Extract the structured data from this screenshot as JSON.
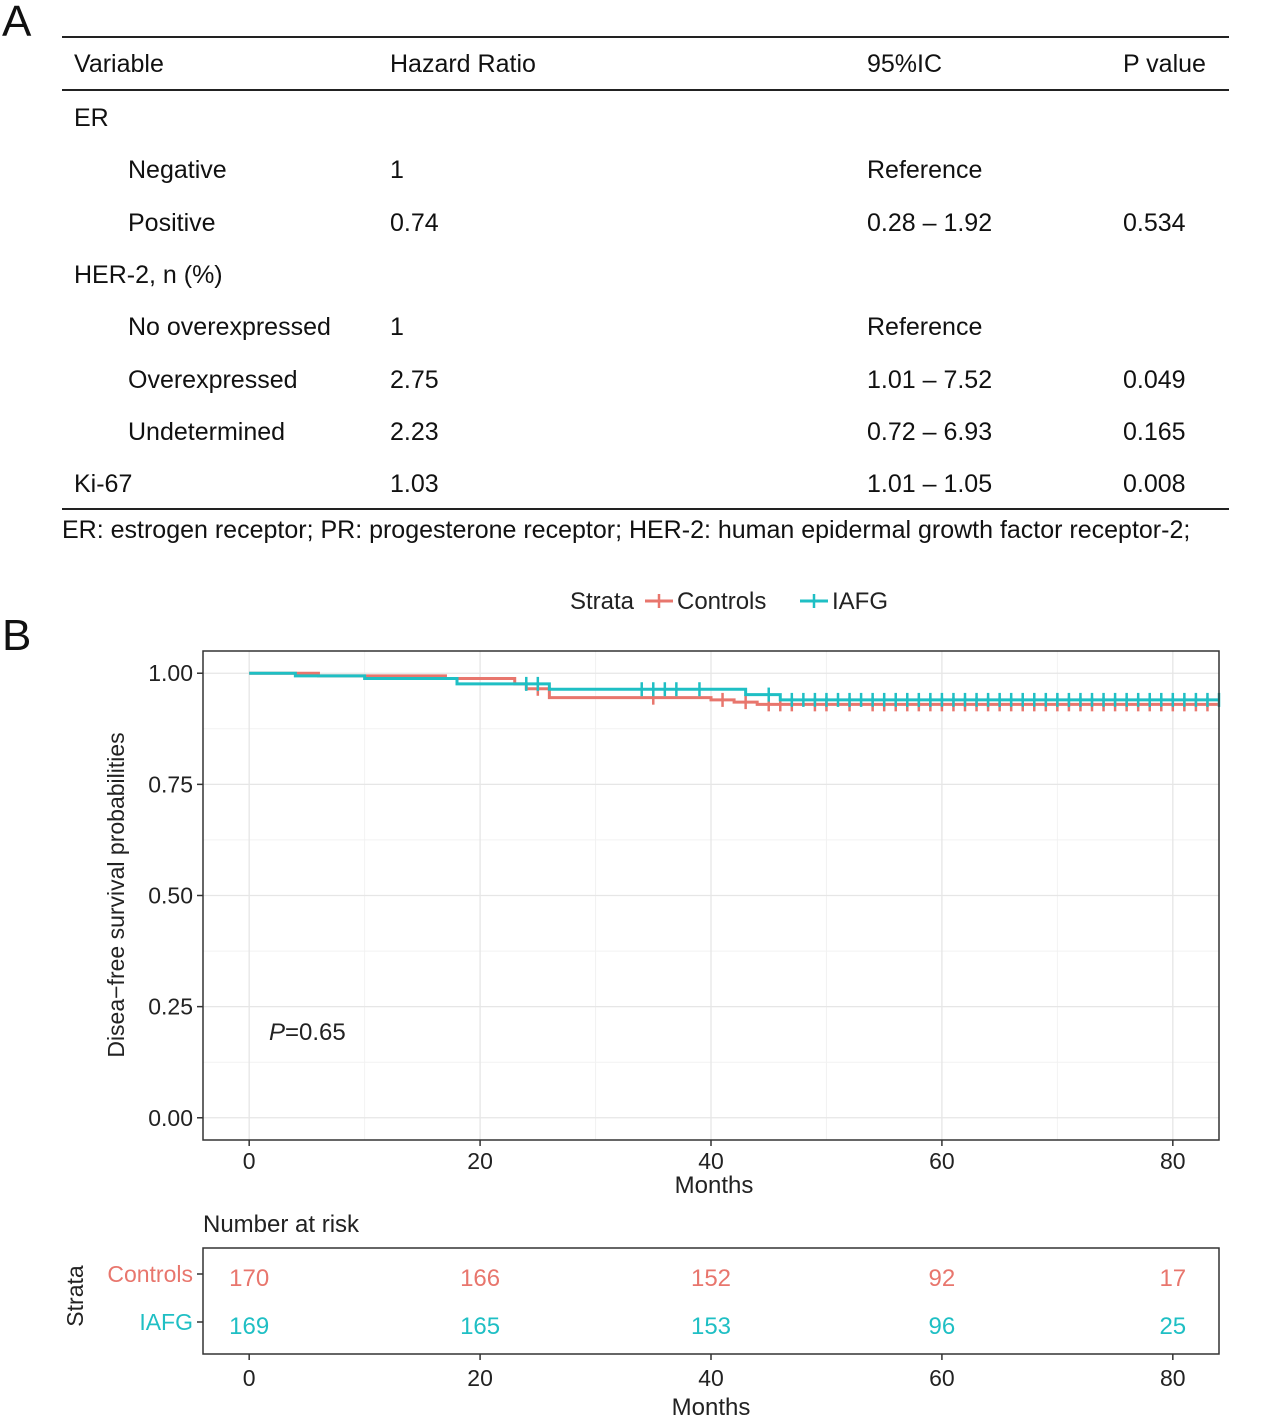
{
  "panels": {
    "a": "A",
    "b": "B"
  },
  "table": {
    "headers": [
      "Variable",
      "Hazard Ratio",
      "95%IC",
      "P value"
    ],
    "rows": [
      {
        "variable": "ER",
        "indent": false,
        "hr": "",
        "ci": "",
        "p": ""
      },
      {
        "variable": "Negative",
        "indent": true,
        "hr": "1",
        "ci": "Reference",
        "p": ""
      },
      {
        "variable": "Positive",
        "indent": true,
        "hr": "0.74",
        "ci": "0.28 – 1.92",
        "p": "0.534"
      },
      {
        "variable": "HER-2, n (%)",
        "indent": false,
        "hr": "",
        "ci": "",
        "p": ""
      },
      {
        "variable": "No overexpressed",
        "indent": true,
        "hr": "1",
        "ci": "Reference",
        "p": ""
      },
      {
        "variable": "Overexpressed",
        "indent": true,
        "hr": "2.75",
        "ci": "1.01 – 7.52",
        "p": "0.049"
      },
      {
        "variable": "Undetermined",
        "indent": true,
        "hr": "2.23",
        "ci": "0.72 – 6.93",
        "p": "0.165"
      },
      {
        "variable": "Ki-67",
        "indent": false,
        "hr": "1.03",
        "ci": "1.01 – 1.05",
        "p": "0.008"
      }
    ],
    "footnote": "ER: estrogen receptor; PR: progesterone receptor; HER-2: human epidermal growth factor receptor-2;"
  },
  "chart_data": {
    "type": "line",
    "legend": {
      "title": "Strata",
      "position": "top"
    },
    "xlabel": "Months",
    "ylabel": "Disea−free survival probabilities",
    "xlim": [
      -4,
      84
    ],
    "ylim": [
      -0.05,
      1.05
    ],
    "xticks": [
      0,
      20,
      40,
      60,
      80
    ],
    "yticks": [
      0.0,
      0.25,
      0.5,
      0.75,
      1.0
    ],
    "ytick_labels": [
      "0.00",
      "0.25",
      "0.50",
      "0.75",
      "1.00"
    ],
    "grid": true,
    "annotation": {
      "italic": "P",
      "text": "=0.65"
    },
    "series": [
      {
        "name": "Controls",
        "color": "#E8766D",
        "steps": [
          [
            0,
            1.0
          ],
          [
            6,
            0.994
          ],
          [
            17,
            0.988
          ],
          [
            23,
            0.976
          ],
          [
            24,
            0.965
          ],
          [
            26,
            0.945
          ],
          [
            40,
            0.94
          ],
          [
            42,
            0.935
          ],
          [
            44,
            0.93
          ],
          [
            84,
            0.93
          ]
        ],
        "censor_x": [
          25,
          35,
          41,
          43,
          45,
          46,
          47,
          49,
          50,
          52,
          54,
          55,
          56,
          57,
          58,
          59,
          60,
          61,
          62,
          63,
          64,
          65,
          66,
          67,
          68,
          69,
          70,
          71,
          72,
          73,
          74,
          75,
          76,
          77,
          78,
          79,
          80,
          81,
          82,
          83
        ]
      },
      {
        "name": "IAFG",
        "color": "#1FBFC4",
        "steps": [
          [
            0,
            1.0
          ],
          [
            4,
            0.994
          ],
          [
            10,
            0.988
          ],
          [
            18,
            0.976
          ],
          [
            26,
            0.964
          ],
          [
            43,
            0.952
          ],
          [
            46,
            0.94
          ],
          [
            84,
            0.94
          ]
        ],
        "censor_x": [
          24,
          25,
          34,
          35,
          36,
          37,
          39,
          45,
          47,
          48,
          49,
          50,
          51,
          52,
          53,
          54,
          55,
          56,
          57,
          58,
          59,
          60,
          61,
          62,
          63,
          64,
          65,
          66,
          67,
          68,
          69,
          70,
          71,
          72,
          73,
          74,
          75,
          76,
          77,
          78,
          79,
          80,
          81,
          82,
          83,
          84
        ]
      }
    ]
  },
  "risk_table": {
    "title": "Number at risk",
    "ylabel": "Strata",
    "xlabel": "Months",
    "times": [
      0,
      20,
      40,
      60,
      80
    ],
    "rows": [
      {
        "name": "Controls",
        "color": "#E8766D",
        "values": [
          "170",
          "166",
          "152",
          "92",
          "17"
        ]
      },
      {
        "name": "IAFG",
        "color": "#1FBFC4",
        "values": [
          "169",
          "165",
          "153",
          "96",
          "25"
        ]
      }
    ]
  }
}
